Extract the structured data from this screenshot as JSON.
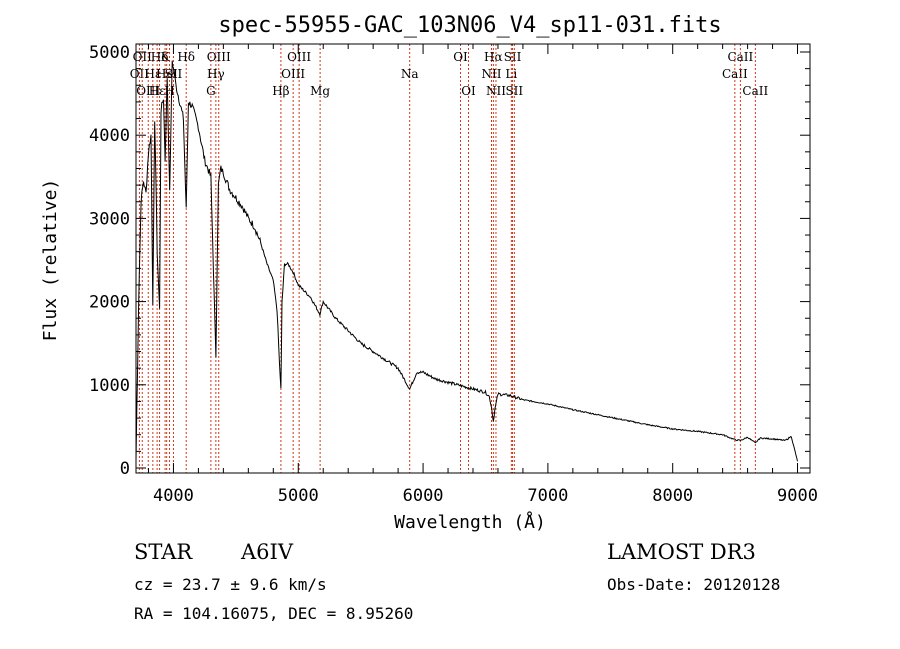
{
  "chart_data": {
    "type": "line",
    "title": "spec-55955-GAC_103N06_V4_sp11-031.fits",
    "xlabel": "Wavelength (Å)",
    "ylabel": "Flux (relative)",
    "xlim": [
      3700,
      9100
    ],
    "ylim": [
      0,
      5000
    ],
    "xticks": [
      4000,
      5000,
      6000,
      7000,
      8000,
      9000
    ],
    "yticks": [
      0,
      1000,
      2000,
      3000,
      4000,
      5000
    ],
    "series": [
      {
        "name": "spectrum",
        "x": [
          3700,
          3720,
          3740,
          3760,
          3780,
          3800,
          3820,
          3835,
          3850,
          3870,
          3889,
          3900,
          3920,
          3933,
          3950,
          3970,
          3990,
          4000,
          4020,
          4050,
          4080,
          4102,
          4120,
          4150,
          4200,
          4250,
          4300,
          4320,
          4340,
          4360,
          4380,
          4400,
          4450,
          4500,
          4550,
          4600,
          4650,
          4700,
          4750,
          4800,
          4830,
          4850,
          4861,
          4870,
          4890,
          4920,
          4960,
          5000,
          5100,
          5173,
          5200,
          5300,
          5400,
          5500,
          5600,
          5700,
          5800,
          5893,
          5950,
          6000,
          6100,
          6200,
          6300,
          6400,
          6500,
          6530,
          6550,
          6563,
          6575,
          6600,
          6700,
          6800,
          7000,
          7200,
          7400,
          7600,
          7800,
          8000,
          8200,
          8400,
          8498,
          8542,
          8600,
          8662,
          8700,
          8800,
          8900,
          8950,
          9000
        ],
        "y": [
          80,
          1900,
          3200,
          3450,
          3300,
          3800,
          4000,
          2000,
          4200,
          2600,
          1900,
          4300,
          4450,
          3700,
          4700,
          3300,
          4900,
          4800,
          4600,
          4400,
          4200,
          3100,
          4400,
          4350,
          4100,
          3700,
          3500,
          2400,
          1350,
          3400,
          3600,
          3550,
          3350,
          3250,
          3150,
          3000,
          2900,
          2700,
          2450,
          2250,
          1900,
          1250,
          950,
          2000,
          2450,
          2450,
          2350,
          2200,
          2050,
          1850,
          2000,
          1800,
          1650,
          1500,
          1400,
          1300,
          1200,
          950,
          1150,
          1150,
          1070,
          1030,
          990,
          950,
          910,
          860,
          720,
          560,
          700,
          890,
          870,
          820,
          770,
          700,
          640,
          580,
          520,
          470,
          440,
          400,
          340,
          330,
          370,
          300,
          360,
          350,
          330,
          380,
          80
        ]
      }
    ],
    "lines": [
      {
        "wave": 3727,
        "row": 2,
        "label": "OII"
      },
      {
        "wave": 3750,
        "row": 1,
        "label": "OII"
      },
      {
        "wave": 3798,
        "row": 3,
        "label": "OIII"
      },
      {
        "wave": 3835,
        "row": 2,
        "label": "Hε"
      },
      {
        "wave": 3869,
        "row": 3,
        "label": "Hε"
      },
      {
        "wave": 3889,
        "row": 1,
        "label": "Hδ"
      },
      {
        "wave": 3933,
        "row": 1,
        "label": "K"
      },
      {
        "wave": 3946,
        "row": 2,
        "label": "Hel"
      },
      {
        "wave": 3969,
        "row": 3,
        "label": "H"
      },
      {
        "wave": 4000,
        "row": 2,
        "label": "SII"
      },
      {
        "wave": 4102,
        "row": 1,
        "label": "Hδ"
      },
      {
        "wave": 4300,
        "row": 3,
        "label": "G"
      },
      {
        "wave": 4340,
        "row": 2,
        "label": "Hγ"
      },
      {
        "wave": 4363,
        "row": 1,
        "label": "OIII"
      },
      {
        "wave": 4861,
        "row": 3,
        "label": "Hβ"
      },
      {
        "wave": 4959,
        "row": 2,
        "label": "OIII"
      },
      {
        "wave": 5007,
        "row": 1,
        "label": "OIII"
      },
      {
        "wave": 5175,
        "row": 3,
        "label": "Mg"
      },
      {
        "wave": 5893,
        "row": 2,
        "label": "Na"
      },
      {
        "wave": 6300,
        "row": 1,
        "label": "OI"
      },
      {
        "wave": 6364,
        "row": 3,
        "label": "OI"
      },
      {
        "wave": 6548,
        "row": 2,
        "label": "NII"
      },
      {
        "wave": 6563,
        "row": 1,
        "label": "Hα"
      },
      {
        "wave": 6584,
        "row": 3,
        "label": "NII"
      },
      {
        "wave": 6707,
        "row": 2,
        "label": "Li"
      },
      {
        "wave": 6717,
        "row": 1,
        "label": "SII"
      },
      {
        "wave": 6731,
        "row": 3,
        "label": "SII"
      },
      {
        "wave": 8498,
        "row": 2,
        "label": "CaII"
      },
      {
        "wave": 8542,
        "row": 1,
        "label": "CaII"
      },
      {
        "wave": 8662,
        "row": 3,
        "label": "CaII"
      }
    ]
  },
  "info": {
    "object_class": "STAR",
    "subclass": "A6IV",
    "survey": "LAMOST DR3",
    "cz": "cz = 23.7 ± 9.6 km/s",
    "obs_date": "Obs-Date: 20120128",
    "coords": "RA = 104.16075, DEC =   8.95260"
  },
  "colors": {
    "spectrum": "#000000",
    "line_markers": "#cc2200",
    "axes": "#000000"
  }
}
